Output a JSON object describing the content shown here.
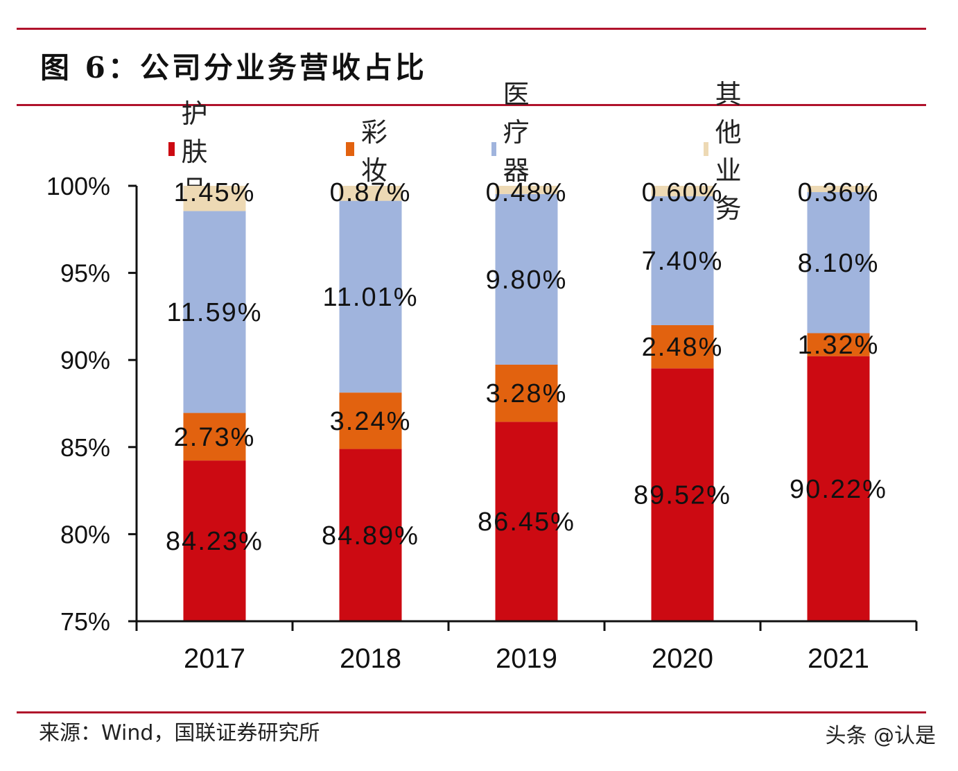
{
  "header": {
    "title": "图 6：公司分业务营收占比"
  },
  "footer": {
    "source": "来源：Wind，国联证券研究所",
    "watermark": "头条 @认是"
  },
  "chart_data": {
    "type": "bar",
    "stacked": true,
    "title": "图 6：公司分业务营收占比",
    "xlabel": "",
    "ylabel": "",
    "categories": [
      "2017",
      "2018",
      "2019",
      "2020",
      "2021"
    ],
    "ylim": [
      75,
      100
    ],
    "yticks": [
      75,
      80,
      85,
      90,
      95,
      100
    ],
    "ytick_labels": [
      "75%",
      "80%",
      "85%",
      "90%",
      "95%",
      "100%"
    ],
    "grid": false,
    "legend_position": "top",
    "series": [
      {
        "name": "护肤品",
        "color": "#CC0A12",
        "values": [
          84.23,
          84.89,
          86.45,
          89.52,
          90.22
        ],
        "labels": [
          "84.23%",
          "84.89%",
          "86.45%",
          "89.52%",
          "90.22%"
        ]
      },
      {
        "name": "彩妆",
        "color": "#E2620F",
        "values": [
          2.73,
          3.24,
          3.28,
          2.48,
          1.32
        ],
        "labels": [
          "2.73%",
          "3.24%",
          "3.28%",
          "2.48%",
          "1.32%"
        ]
      },
      {
        "name": "医疗器械",
        "color": "#A0B4DD",
        "values": [
          11.59,
          11.01,
          9.8,
          7.4,
          8.1
        ],
        "labels": [
          "11.59%",
          "11.01%",
          "9.80%",
          "7.40%",
          "8.10%"
        ]
      },
      {
        "name": "其他业务",
        "color": "#EDD9B4",
        "values": [
          1.45,
          0.87,
          0.48,
          0.6,
          0.36
        ],
        "labels": [
          "1.45%",
          "0.87%",
          "0.48%",
          "0.60%",
          "0.36%"
        ]
      }
    ]
  }
}
